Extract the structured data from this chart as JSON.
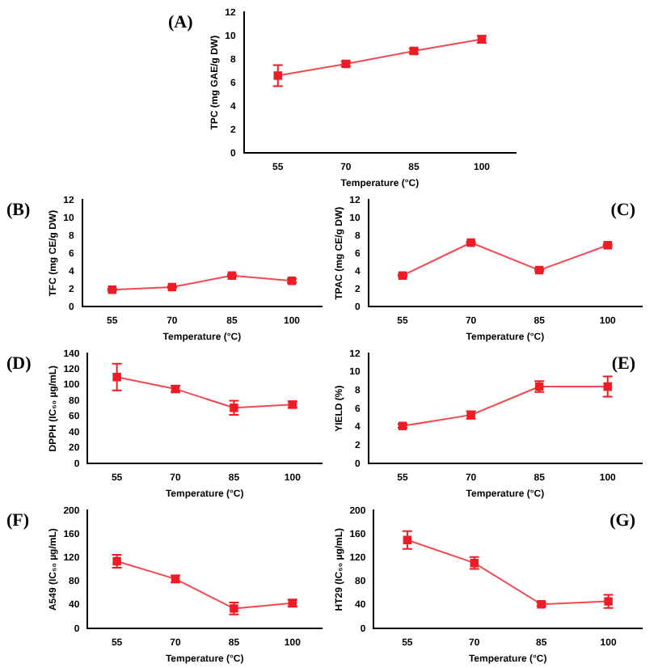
{
  "chart_data": [
    {
      "type": "line",
      "title": "(A)",
      "xlabel": "Temperature (°C)",
      "ylabel": "TPC (mg GAE/g DW)",
      "categories": [
        "55",
        "70",
        "85",
        "100"
      ],
      "values": [
        6.6,
        7.6,
        8.7,
        9.7
      ],
      "errors": [
        0.9,
        0.2,
        0.2,
        0.3
      ],
      "color": "#ee1c25",
      "ylim": [
        0,
        12
      ],
      "yticks": [
        0,
        2,
        4,
        6,
        8,
        10,
        12
      ],
      "marker": "square",
      "line_style": "solid",
      "grid": false,
      "legend": false
    },
    {
      "type": "line",
      "title": "(B)",
      "xlabel": "Temperature (°C)",
      "ylabel": "TFC (mg CE/g DW)",
      "categories": [
        "55",
        "70",
        "85",
        "100"
      ],
      "values": [
        1.9,
        2.2,
        3.5,
        2.9
      ],
      "errors": [
        0.1,
        0.1,
        0.1,
        0.2
      ],
      "color": "#ee1c25",
      "ylim": [
        0,
        12
      ],
      "yticks": [
        0,
        2,
        4,
        6,
        8,
        10,
        12
      ],
      "marker": "square",
      "line_style": "solid",
      "grid": false,
      "legend": false
    },
    {
      "type": "line",
      "title": "(C)",
      "xlabel": "Temperature (°C)",
      "ylabel": "TPAC (mg CE/g DW)",
      "categories": [
        "55",
        "70",
        "85",
        "100"
      ],
      "values": [
        3.5,
        7.2,
        4.1,
        6.9
      ],
      "errors": [
        0.1,
        0.1,
        0.1,
        0.1
      ],
      "color": "#ee1c25",
      "ylim": [
        0,
        12
      ],
      "yticks": [
        0,
        2,
        4,
        6,
        8,
        10,
        12
      ],
      "marker": "square",
      "line_style": "solid",
      "grid": false,
      "legend": false
    },
    {
      "type": "line",
      "title": "(D)",
      "xlabel": "Temperature (°C)",
      "ylabel": "DPPH (IC₅₀ µg/mL)",
      "categories": [
        "55",
        "70",
        "85",
        "100"
      ],
      "values": [
        110,
        95,
        71,
        75
      ],
      "errors": [
        17,
        4,
        9,
        4
      ],
      "color": "#ee1c25",
      "ylim": [
        0,
        140
      ],
      "yticks": [
        0,
        20,
        40,
        60,
        80,
        100,
        120,
        140
      ],
      "marker": "square",
      "line_style": "solid",
      "grid": false,
      "legend": false
    },
    {
      "type": "line",
      "title": "(E)",
      "xlabel": "Temperature (°C)",
      "ylabel": "YIELD (%)",
      "categories": [
        "55",
        "70",
        "85",
        "100"
      ],
      "values": [
        4.1,
        5.3,
        8.4,
        8.4
      ],
      "errors": [
        0.2,
        0.4,
        0.6,
        1.1
      ],
      "color": "#ee1c25",
      "ylim": [
        0,
        12
      ],
      "yticks": [
        0,
        2,
        4,
        6,
        8,
        10,
        12
      ],
      "marker": "square",
      "line_style": "solid",
      "grid": false,
      "legend": false
    },
    {
      "type": "line",
      "title": "(F)",
      "xlabel": "Temperature (°C)",
      "ylabel": "A549 (IC₅₀ µg/mL)",
      "categories": [
        "55",
        "70",
        "85",
        "100"
      ],
      "values": [
        114,
        84,
        34,
        43
      ],
      "errors": [
        11,
        6,
        10,
        6
      ],
      "color": "#ee1c25",
      "ylim": [
        0,
        200
      ],
      "yticks": [
        0,
        40,
        80,
        120,
        160,
        200
      ],
      "marker": "square",
      "line_style": "solid",
      "grid": false,
      "legend": false
    },
    {
      "type": "line",
      "title": "(G)",
      "xlabel": "Temperature (°C)",
      "ylabel": "HT29 (IC₅₀ µg/mL)",
      "categories": [
        "55",
        "70",
        "85",
        "100"
      ],
      "values": [
        150,
        111,
        41,
        46
      ],
      "errors": [
        15,
        10,
        3,
        11
      ],
      "color": "#ee1c25",
      "ylim": [
        0,
        200
      ],
      "yticks": [
        0,
        40,
        80,
        120,
        160,
        200
      ],
      "marker": "square",
      "line_style": "solid",
      "grid": false,
      "legend": false
    }
  ]
}
